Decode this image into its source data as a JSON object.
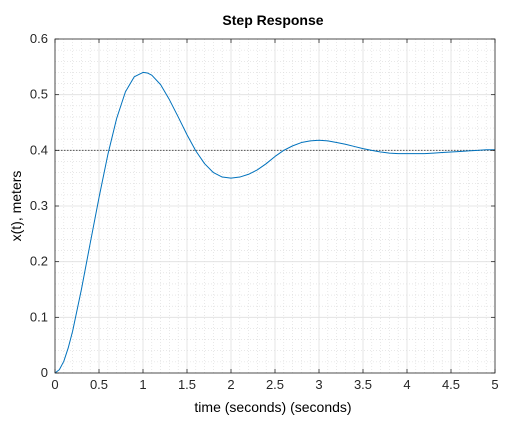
{
  "chart_data": {
    "type": "line",
    "title": "Step Response",
    "xlabel": "time (seconds) (seconds)",
    "ylabel": "x(t), meters",
    "xlim": [
      0,
      5
    ],
    "ylim": [
      0,
      0.6
    ],
    "xticks": [
      "0",
      "0.5",
      "1",
      "1.5",
      "2",
      "2.5",
      "3",
      "3.5",
      "4",
      "4.5",
      "5"
    ],
    "yticks": [
      "0",
      "0.1",
      "0.2",
      "0.3",
      "0.4",
      "0.5",
      "0.6"
    ],
    "grid": true,
    "minor_grid": true,
    "reference_line": {
      "y": 0.4,
      "style": "dotted",
      "color": "#555555"
    },
    "series": [
      {
        "color": "#0072BD",
        "x": [
          0,
          0.05,
          0.1,
          0.15,
          0.2,
          0.3,
          0.4,
          0.5,
          0.6,
          0.7,
          0.8,
          0.9,
          1.0,
          1.05,
          1.1,
          1.2,
          1.3,
          1.4,
          1.5,
          1.6,
          1.7,
          1.8,
          1.9,
          2.0,
          2.1,
          2.2,
          2.3,
          2.4,
          2.5,
          2.6,
          2.7,
          2.8,
          2.9,
          3.0,
          3.1,
          3.2,
          3.3,
          3.4,
          3.5,
          3.6,
          3.7,
          3.8,
          3.9,
          4.0,
          4.1,
          4.2,
          4.3,
          4.4,
          4.5,
          4.6,
          4.7,
          4.8,
          4.9,
          5.0
        ],
        "y": [
          0,
          0.006,
          0.021,
          0.045,
          0.075,
          0.15,
          0.233,
          0.315,
          0.392,
          0.457,
          0.505,
          0.532,
          0.54,
          0.539,
          0.535,
          0.518,
          0.491,
          0.46,
          0.428,
          0.399,
          0.376,
          0.36,
          0.352,
          0.35,
          0.352,
          0.357,
          0.365,
          0.376,
          0.389,
          0.4,
          0.408,
          0.414,
          0.417,
          0.418,
          0.417,
          0.414,
          0.411,
          0.407,
          0.403,
          0.4,
          0.397,
          0.395,
          0.394,
          0.394,
          0.394,
          0.394,
          0.395,
          0.396,
          0.397,
          0.398,
          0.399,
          0.4,
          0.401,
          0.401
        ]
      }
    ]
  }
}
